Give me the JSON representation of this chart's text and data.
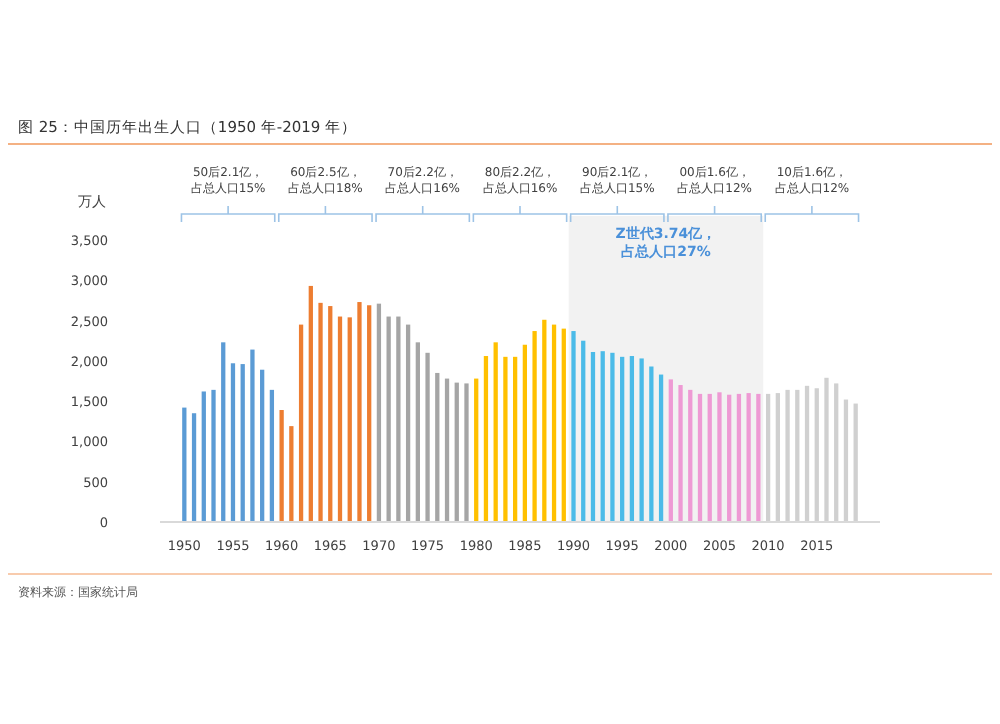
{
  "chart_data": {
    "type": "bar",
    "title": "图 25：中国历年出生人口（1950 年-2019 年）",
    "ylabel": "万人",
    "x": [
      1950,
      1951,
      1952,
      1953,
      1954,
      1955,
      1956,
      1957,
      1958,
      1959,
      1960,
      1961,
      1962,
      1963,
      1964,
      1965,
      1966,
      1967,
      1968,
      1969,
      1970,
      1971,
      1972,
      1973,
      1974,
      1975,
      1976,
      1977,
      1978,
      1979,
      1980,
      1981,
      1982,
      1983,
      1984,
      1985,
      1986,
      1987,
      1988,
      1989,
      1990,
      1991,
      1992,
      1993,
      1994,
      1995,
      1996,
      1997,
      1998,
      1999,
      2000,
      2001,
      2002,
      2003,
      2004,
      2005,
      2006,
      2007,
      2008,
      2009,
      2010,
      2011,
      2012,
      2013,
      2014,
      2015,
      2016,
      2017,
      2018,
      2019
    ],
    "values": [
      1420,
      1350,
      1620,
      1640,
      2230,
      1970,
      1960,
      2140,
      1890,
      1640,
      1390,
      1190,
      2450,
      2930,
      2720,
      2680,
      2550,
      2540,
      2730,
      2690,
      2710,
      2550,
      2550,
      2450,
      2230,
      2100,
      1850,
      1780,
      1730,
      1720,
      1780,
      2060,
      2230,
      2050,
      2050,
      2200,
      2370,
      2510,
      2450,
      2400,
      2370,
      2250,
      2110,
      2120,
      2100,
      2050,
      2060,
      2030,
      1930,
      1830,
      1770,
      1700,
      1640,
      1590,
      1590,
      1610,
      1580,
      1590,
      1600,
      1590,
      1590,
      1600,
      1640,
      1640,
      1690,
      1660,
      1790,
      1720,
      1520,
      1470
    ],
    "colors": [
      "#5b9bd5",
      "#5b9bd5",
      "#5b9bd5",
      "#5b9bd5",
      "#5b9bd5",
      "#5b9bd5",
      "#5b9bd5",
      "#5b9bd5",
      "#5b9bd5",
      "#5b9bd5",
      "#ed7d31",
      "#ed7d31",
      "#ed7d31",
      "#ed7d31",
      "#ed7d31",
      "#ed7d31",
      "#ed7d31",
      "#ed7d31",
      "#ed7d31",
      "#ed7d31",
      "#a5a5a5",
      "#a5a5a5",
      "#a5a5a5",
      "#a5a5a5",
      "#a5a5a5",
      "#a5a5a5",
      "#a5a5a5",
      "#a5a5a5",
      "#a5a5a5",
      "#a5a5a5",
      "#ffc000",
      "#ffc000",
      "#ffc000",
      "#ffc000",
      "#ffc000",
      "#ffc000",
      "#ffc000",
      "#ffc000",
      "#ffc000",
      "#ffc000",
      "#4bbbe8",
      "#4bbbe8",
      "#4bbbe8",
      "#4bbbe8",
      "#4bbbe8",
      "#4bbbe8",
      "#4bbbe8",
      "#4bbbe8",
      "#4bbbe8",
      "#4bbbe8",
      "#ee9ad4",
      "#ee9ad4",
      "#ee9ad4",
      "#ee9ad4",
      "#ee9ad4",
      "#ee9ad4",
      "#ee9ad4",
      "#ee9ad4",
      "#ee9ad4",
      "#ee9ad4",
      "#d0d0d0",
      "#d0d0d0",
      "#d0d0d0",
      "#d0d0d0",
      "#d0d0d0",
      "#d0d0d0",
      "#d0d0d0",
      "#d0d0d0",
      "#d0d0d0",
      "#d0d0d0"
    ],
    "xlim": [
      1947.5,
      2021.5
    ],
    "xticks": [
      1950,
      1955,
      1960,
      1965,
      1970,
      1975,
      1980,
      1985,
      1990,
      1995,
      2000,
      2005,
      2010,
      2015
    ],
    "ylim": [
      0,
      3500
    ],
    "yticks": [
      {
        "value": 0,
        "label": "0"
      },
      {
        "value": 500,
        "label": "500"
      },
      {
        "value": 1000,
        "label": "1,000"
      },
      {
        "value": 1500,
        "label": "1,500"
      },
      {
        "value": 2000,
        "label": "2,000"
      },
      {
        "value": 2500,
        "label": "2,500"
      },
      {
        "value": 3000,
        "label": "3,000"
      },
      {
        "value": 3500,
        "label": "3,500"
      }
    ],
    "bands": [
      {
        "axis": "x",
        "from": 1989.5,
        "to": 2009.5,
        "label": "Z世代3.74亿，占总人口27%",
        "color": "#f2f2f2"
      }
    ],
    "annotations": [
      "50后2.1亿，占总人口15%",
      "60后2.5亿，占总人口18%",
      "70后2.2亿，占总人口16%",
      "80后2.2亿，占总人口16%",
      "90后2.1亿，占总人口15%",
      "00后1.6亿，占总人口12%",
      "10后1.6亿，占总人口12%",
      "资料来源：国家统计局"
    ],
    "grid": false
  }
}
